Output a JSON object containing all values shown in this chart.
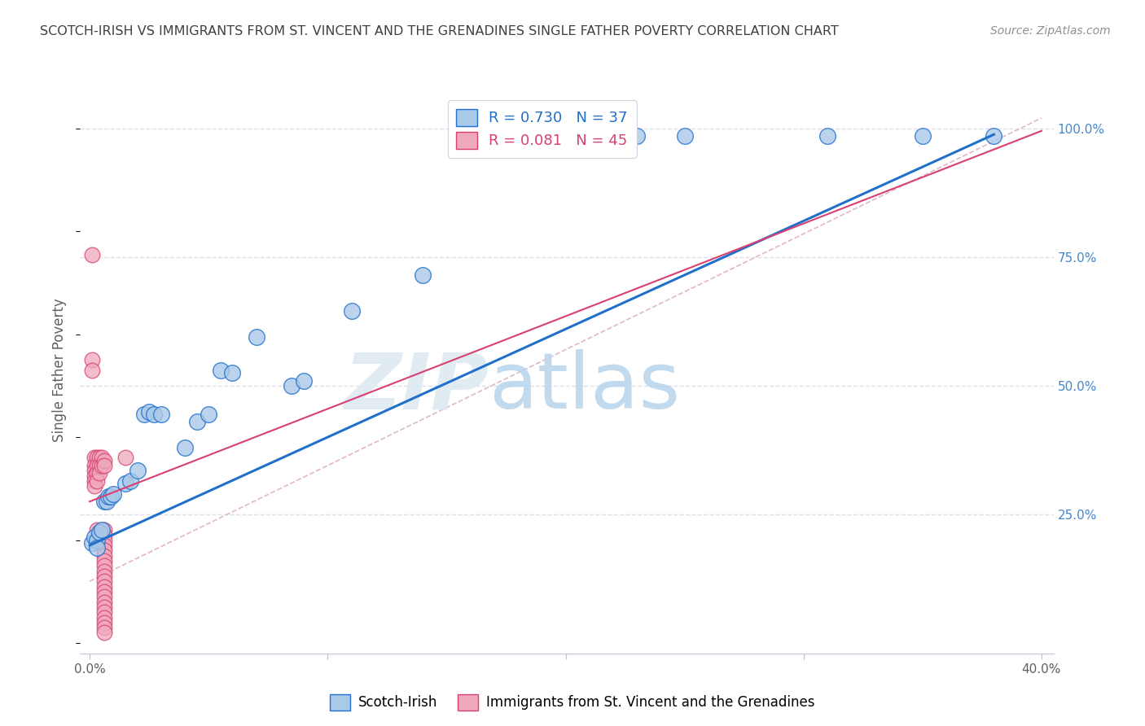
{
  "title": "SCOTCH-IRISH VS IMMIGRANTS FROM ST. VINCENT AND THE GRENADINES SINGLE FATHER POVERTY CORRELATION CHART",
  "source": "Source: ZipAtlas.com",
  "xlabel": "",
  "ylabel": "Single Father Poverty",
  "legend_label_blue": "Scotch-Irish",
  "legend_label_pink": "Immigrants from St. Vincent and the Grenadines",
  "r_blue": 0.73,
  "n_blue": 37,
  "r_pink": 0.081,
  "n_pink": 45,
  "xlim": [
    -0.004,
    0.405
  ],
  "ylim": [
    -0.02,
    1.08
  ],
  "xticks": [
    0.0,
    0.1,
    0.2,
    0.3,
    0.4
  ],
  "xticklabels": [
    "0.0%",
    "",
    "",
    "",
    "40.0%"
  ],
  "yticks": [
    0.25,
    0.5,
    0.75,
    1.0
  ],
  "yticklabels": [
    "25.0%",
    "50.0%",
    "75.0%",
    "100.0%"
  ],
  "watermark_zip": "ZIP",
  "watermark_atlas": "atlas",
  "blue_scatter": [
    [
      0.001,
      0.195
    ],
    [
      0.002,
      0.205
    ],
    [
      0.003,
      0.2
    ],
    [
      0.003,
      0.185
    ],
    [
      0.004,
      0.215
    ],
    [
      0.005,
      0.22
    ],
    [
      0.006,
      0.275
    ],
    [
      0.007,
      0.275
    ],
    [
      0.008,
      0.285
    ],
    [
      0.009,
      0.285
    ],
    [
      0.01,
      0.29
    ],
    [
      0.015,
      0.31
    ],
    [
      0.017,
      0.315
    ],
    [
      0.02,
      0.335
    ],
    [
      0.023,
      0.445
    ],
    [
      0.025,
      0.45
    ],
    [
      0.027,
      0.445
    ],
    [
      0.03,
      0.445
    ],
    [
      0.04,
      0.38
    ],
    [
      0.045,
      0.43
    ],
    [
      0.05,
      0.445
    ],
    [
      0.055,
      0.53
    ],
    [
      0.06,
      0.525
    ],
    [
      0.07,
      0.595
    ],
    [
      0.085,
      0.5
    ],
    [
      0.09,
      0.51
    ],
    [
      0.11,
      0.645
    ],
    [
      0.14,
      0.715
    ],
    [
      0.155,
      0.985
    ],
    [
      0.175,
      0.985
    ],
    [
      0.195,
      0.985
    ],
    [
      0.21,
      0.985
    ],
    [
      0.23,
      0.985
    ],
    [
      0.25,
      0.985
    ],
    [
      0.31,
      0.985
    ],
    [
      0.35,
      0.985
    ],
    [
      0.38,
      0.985
    ]
  ],
  "pink_scatter": [
    [
      0.001,
      0.755
    ],
    [
      0.001,
      0.55
    ],
    [
      0.001,
      0.53
    ],
    [
      0.002,
      0.36
    ],
    [
      0.002,
      0.345
    ],
    [
      0.002,
      0.335
    ],
    [
      0.002,
      0.325
    ],
    [
      0.002,
      0.315
    ],
    [
      0.002,
      0.305
    ],
    [
      0.003,
      0.36
    ],
    [
      0.003,
      0.345
    ],
    [
      0.003,
      0.33
    ],
    [
      0.003,
      0.315
    ],
    [
      0.003,
      0.22
    ],
    [
      0.004,
      0.36
    ],
    [
      0.004,
      0.345
    ],
    [
      0.004,
      0.33
    ],
    [
      0.004,
      0.215
    ],
    [
      0.004,
      0.205
    ],
    [
      0.005,
      0.36
    ],
    [
      0.005,
      0.345
    ],
    [
      0.006,
      0.355
    ],
    [
      0.006,
      0.345
    ],
    [
      0.006,
      0.22
    ],
    [
      0.006,
      0.21
    ],
    [
      0.006,
      0.2
    ],
    [
      0.006,
      0.19
    ],
    [
      0.006,
      0.18
    ],
    [
      0.006,
      0.17
    ],
    [
      0.006,
      0.16
    ],
    [
      0.006,
      0.15
    ],
    [
      0.006,
      0.14
    ],
    [
      0.006,
      0.13
    ],
    [
      0.006,
      0.12
    ],
    [
      0.006,
      0.11
    ],
    [
      0.006,
      0.1
    ],
    [
      0.006,
      0.09
    ],
    [
      0.006,
      0.08
    ],
    [
      0.006,
      0.07
    ],
    [
      0.006,
      0.06
    ],
    [
      0.006,
      0.05
    ],
    [
      0.006,
      0.04
    ],
    [
      0.006,
      0.03
    ],
    [
      0.006,
      0.02
    ],
    [
      0.015,
      0.36
    ]
  ],
  "blue_color": "#aac8e8",
  "pink_color": "#f0a8bc",
  "line_blue_color": "#2070cc",
  "line_pink_color": "#d84070",
  "line_diag_color": "#e0b8c8",
  "grid_color": "#dde0ea",
  "title_color": "#404040",
  "source_color": "#909090",
  "axis_label_color": "#606060",
  "tick_color_right": "#4488cc",
  "tick_color_x": "#606060",
  "background_color": "#ffffff",
  "blue_line_intercept": 0.19,
  "blue_line_slope": 2.1,
  "pink_line_intercept": 0.275,
  "pink_line_slope": 1.8
}
